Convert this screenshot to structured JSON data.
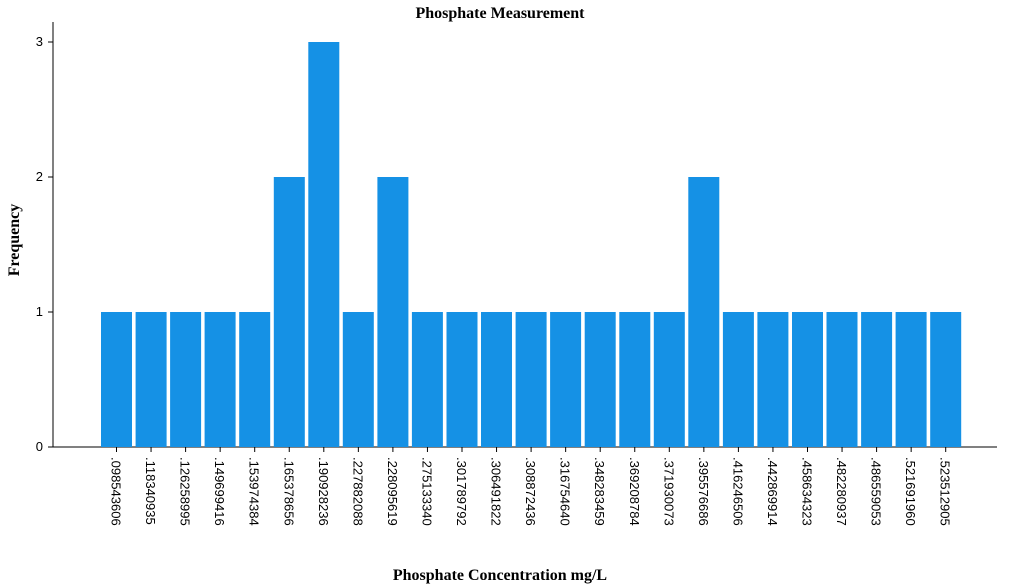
{
  "chart_data": {
    "type": "bar",
    "title": "Phosphate Measurement",
    "xlabel": "Phosphate Concentration mg/L",
    "ylabel": "Frequency",
    "categories": [
      ".098543606",
      ".118340935",
      ".126258995",
      ".149699416",
      ".153974384",
      ".165378656",
      ".190928236",
      ".227882088",
      ".228095619",
      ".275133340",
      ".301789792",
      ".306491822",
      ".308872436",
      ".316754640",
      ".348283459",
      ".369208784",
      ".371930073",
      ".395576686",
      ".416246506",
      ".442869914",
      ".458634323",
      ".482280937",
      ".486559053",
      ".521691960",
      ".523512905"
    ],
    "values": [
      1,
      1,
      1,
      1,
      1,
      2,
      3,
      1,
      2,
      1,
      1,
      1,
      1,
      1,
      1,
      1,
      1,
      2,
      1,
      1,
      1,
      1,
      1,
      1,
      1
    ],
    "ylim": [
      0,
      3
    ],
    "yticks": [
      "0",
      "1",
      "2",
      "3"
    ],
    "bar_color": "#1591e5",
    "grid": false,
    "legend": "none"
  }
}
